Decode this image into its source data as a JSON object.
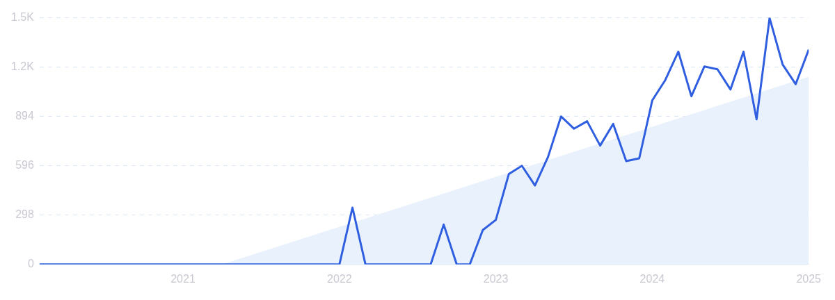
{
  "chart_data": {
    "type": "line",
    "xlim": [
      "2020-02",
      "2025-01"
    ],
    "xticks": [
      "2021",
      "2022",
      "2023",
      "2024",
      "2025"
    ],
    "ylim": [
      0,
      1490
    ],
    "yticks": [
      0,
      298,
      596,
      894,
      {
        "value": 1192,
        "label": "1.2K"
      },
      {
        "value": 1490,
        "label": "1.5K"
      }
    ],
    "grid": "y",
    "legend": false,
    "marker": "none",
    "line_style": "solid",
    "series": [
      {
        "type": "area",
        "color": "#e8f1fc",
        "x": [
          "2021-04",
          "2025-01"
        ],
        "values": [
          0,
          1134
        ]
      },
      {
        "type": "line",
        "color": "#2f5fe0",
        "x": [
          "2020-02",
          "2020-03",
          "2020-04",
          "2020-05",
          "2020-06",
          "2020-07",
          "2020-08",
          "2020-09",
          "2020-10",
          "2020-11",
          "2020-12",
          "2021-01",
          "2021-02",
          "2021-03",
          "2021-04",
          "2021-05",
          "2021-06",
          "2021-07",
          "2021-08",
          "2021-09",
          "2021-10",
          "2021-11",
          "2021-12",
          "2022-01",
          "2022-02",
          "2022-03",
          "2022-04",
          "2022-05",
          "2022-06",
          "2022-07",
          "2022-08",
          "2022-09",
          "2022-10",
          "2022-11",
          "2022-12",
          "2023-01",
          "2023-02",
          "2023-03",
          "2023-04",
          "2023-05",
          "2023-06",
          "2023-07",
          "2023-08",
          "2023-09",
          "2023-10",
          "2023-11",
          "2023-12",
          "2024-01",
          "2024-02",
          "2024-03",
          "2024-04",
          "2024-05",
          "2024-06",
          "2024-07",
          "2024-08",
          "2024-09",
          "2024-10",
          "2024-11",
          "2024-12",
          "2025-01"
        ],
        "values": [
          0,
          0,
          0,
          0,
          0,
          0,
          0,
          0,
          0,
          0,
          0,
          0,
          0,
          0,
          0,
          0,
          0,
          0,
          0,
          0,
          0,
          0,
          0,
          0,
          343,
          0,
          0,
          0,
          0,
          0,
          0,
          241,
          0,
          0,
          208,
          269,
          547,
          596,
          477,
          649,
          894,
          820,
          865,
          718,
          849,
          624,
          641,
          991,
          1114,
          1285,
          1016,
          1196,
          1179,
          1057,
          1285,
          877,
          1489,
          1208,
          1089,
          1297
        ]
      }
    ]
  }
}
